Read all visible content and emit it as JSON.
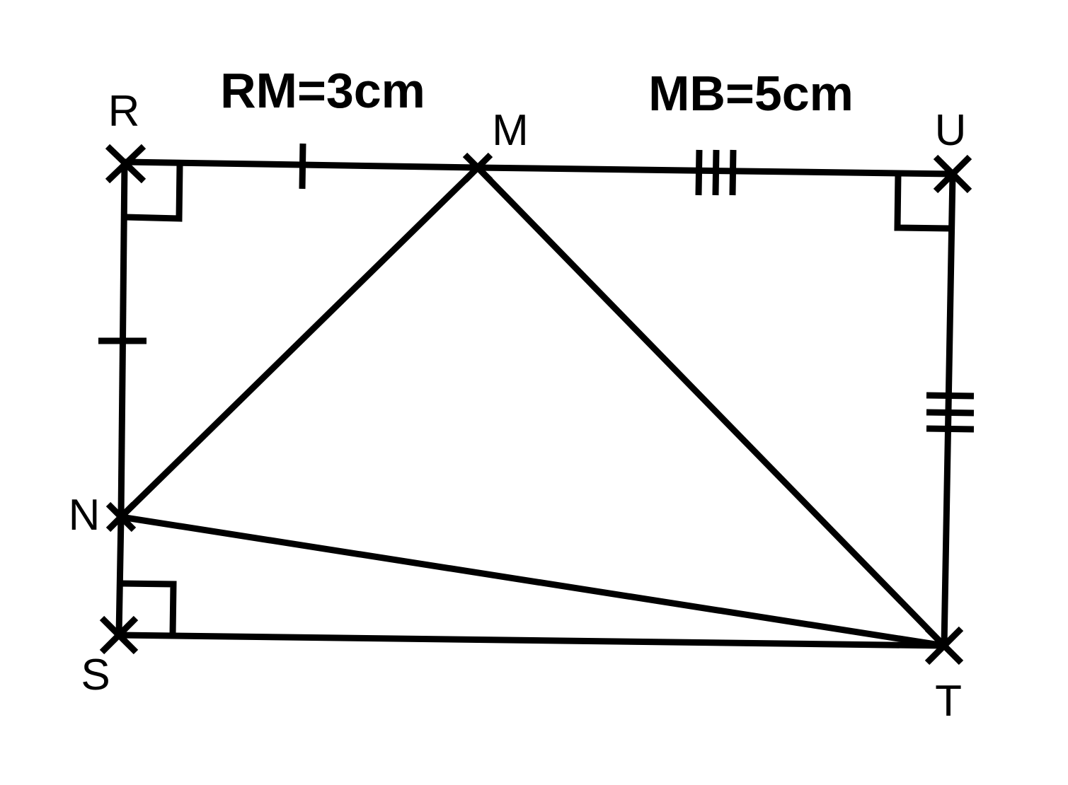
{
  "measurements": {
    "rm": "RM=3cm",
    "mb": "MB=5cm"
  },
  "points": {
    "R": "R",
    "M": "M",
    "U": "U",
    "N": "N",
    "S": "S",
    "T": "T"
  },
  "colors": {
    "ink": "#000000",
    "background": "#ffffff"
  }
}
